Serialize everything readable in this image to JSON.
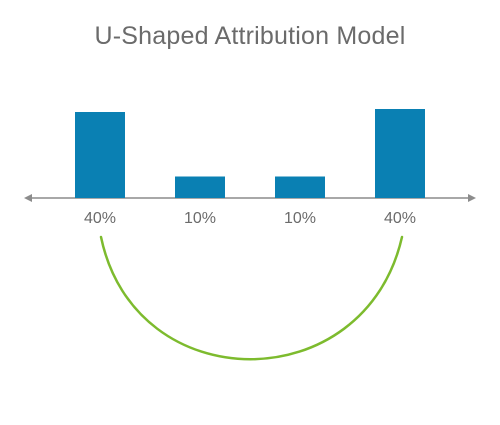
{
  "chart_data": {
    "type": "bar",
    "title": "U-Shaped Attribution Model",
    "categories": [
      "40%",
      "10%",
      "10%",
      "40%"
    ],
    "values": [
      40,
      10,
      10,
      40
    ],
    "ylim": [
      0,
      40
    ],
    "grid": false,
    "legend": "none"
  },
  "colors": {
    "bar": "#0a80b3",
    "axis": "#8c8c8c",
    "curve": "#7dbb2e",
    "title": "#6b6b6b",
    "tick_label": "#6b6b6b"
  }
}
